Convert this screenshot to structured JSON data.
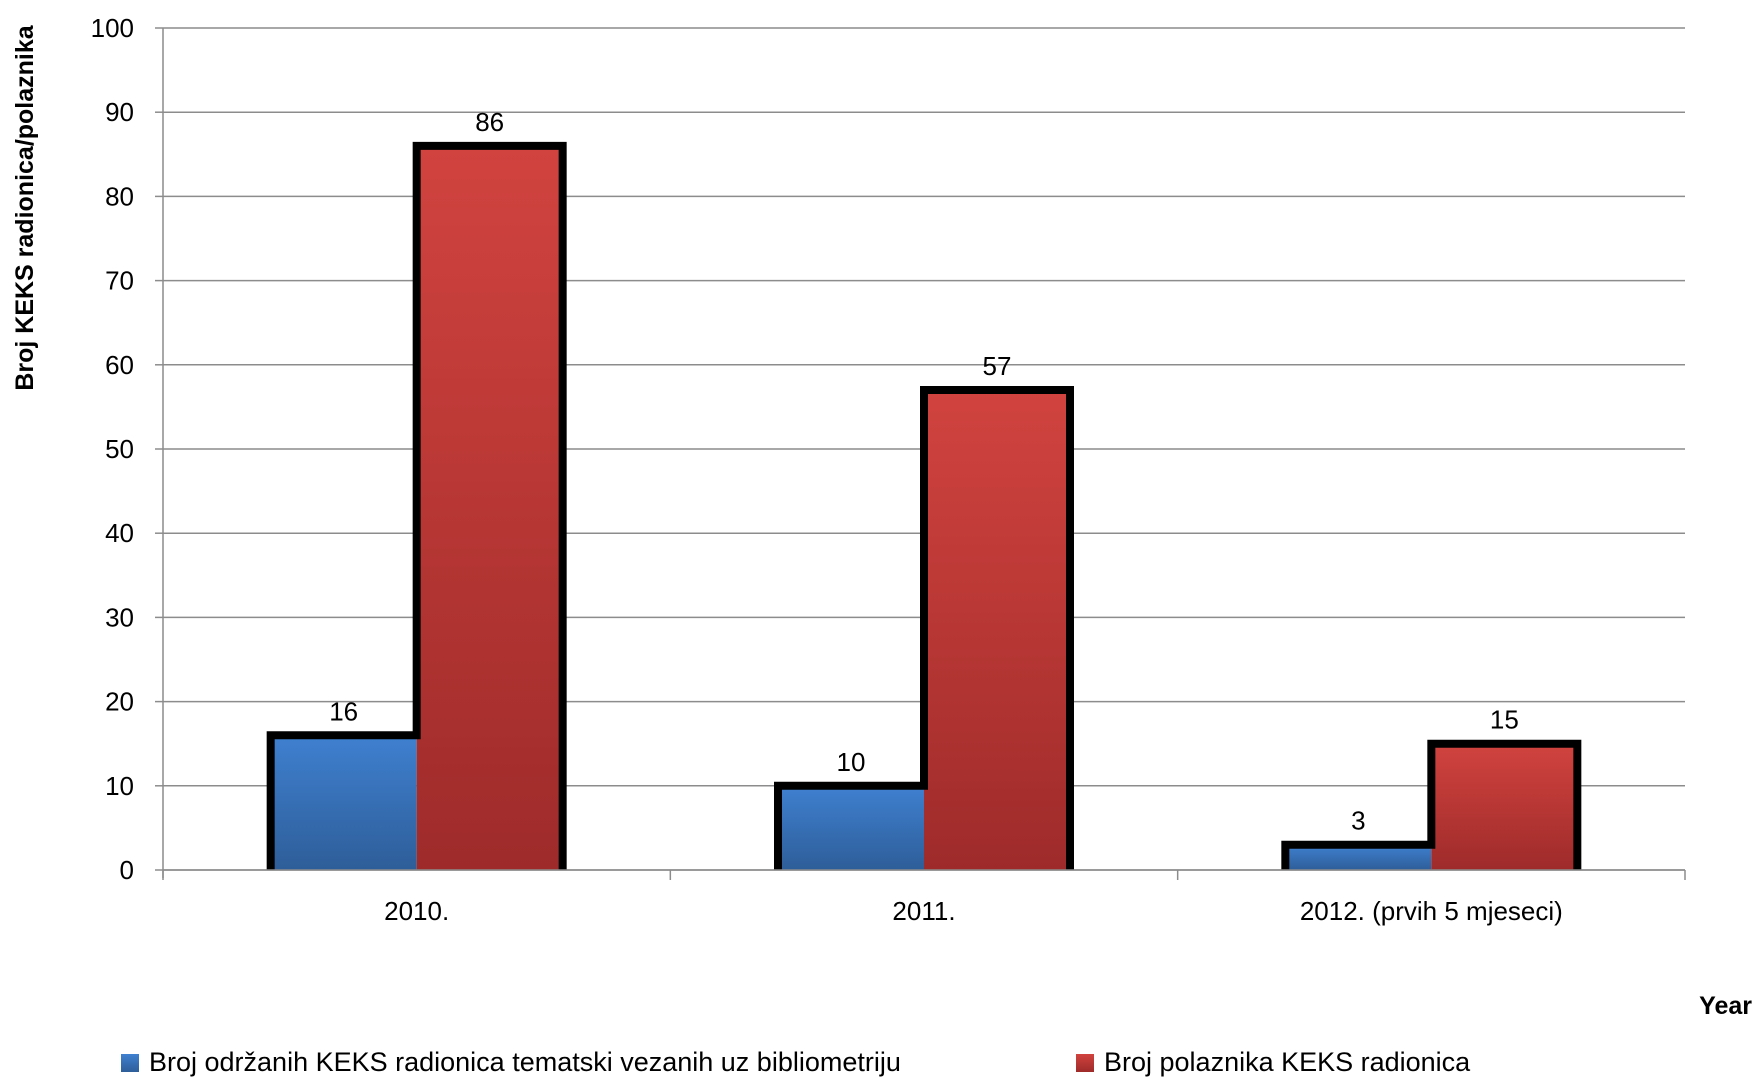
{
  "chart_data": {
    "type": "bar",
    "categories": [
      "2010.",
      "2011.",
      "2012. (prvih 5 mjeseci)"
    ],
    "series": [
      {
        "name": "Broj održanih KEKS radionica tematski vezanih uz bibliometriju",
        "values": [
          16,
          10,
          3
        ],
        "color": "#3A78C4"
      },
      {
        "name": "Broj polaznika KEKS radionica",
        "values": [
          86,
          57,
          15
        ],
        "color": "#C0393B"
      }
    ],
    "title": "",
    "xlabel": "Year",
    "ylabel": "Broj KEKS radionica/polaznika",
    "ylim": [
      0,
      100
    ],
    "yticks": [
      "0",
      "10",
      "20",
      "30",
      "40",
      "50",
      "60",
      "70",
      "80",
      "90",
      "100"
    ],
    "grid": true,
    "legend_position": "bottom",
    "data_labels": true
  }
}
